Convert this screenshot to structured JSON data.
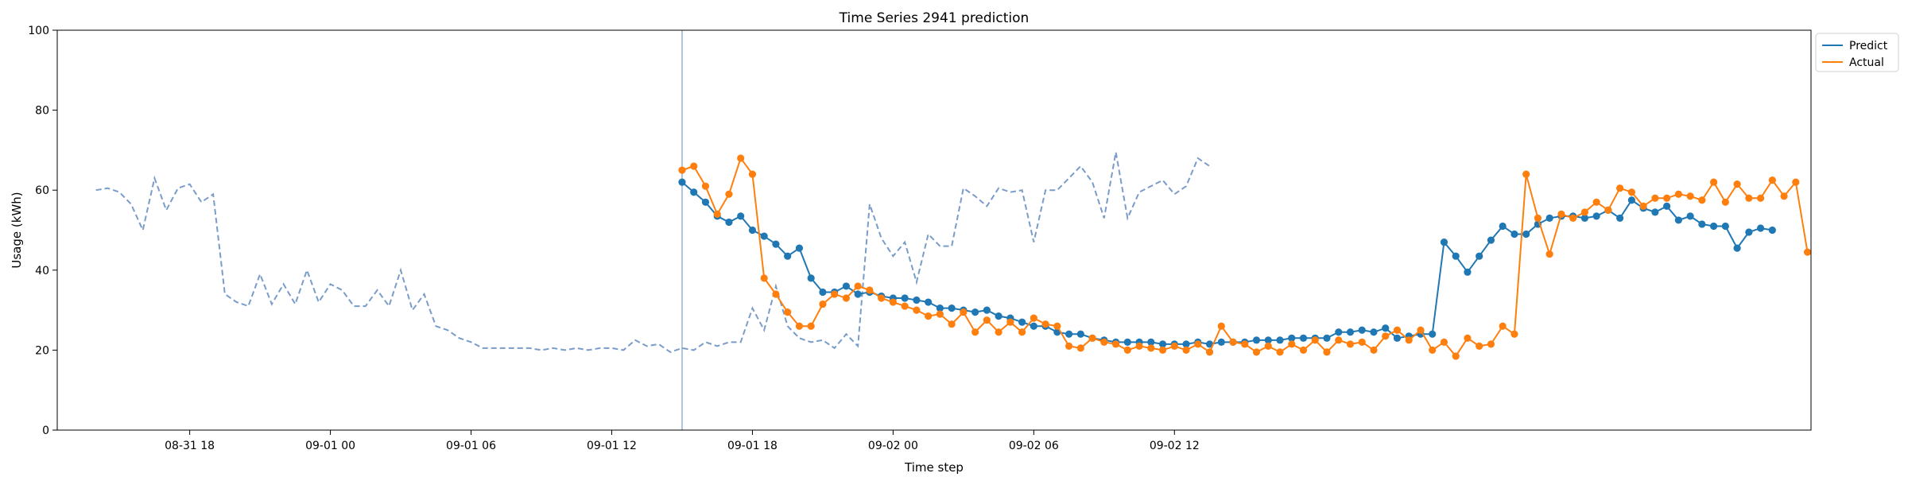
{
  "chart_data": {
    "type": "line",
    "title": "Time Series 2941 prediction",
    "xlabel": "Time step",
    "ylabel": "Usage (kWh)",
    "ylim": [
      0,
      100
    ],
    "yticks": [
      0,
      20,
      40,
      60,
      80,
      100
    ],
    "x_start": "2024-08-31T14:00",
    "x_step_minutes": 30,
    "xticks": [
      {
        "label": "08-31 18",
        "index": 8
      },
      {
        "label": "09-01 00",
        "index": 20
      },
      {
        "label": "09-01 06",
        "index": 32
      },
      {
        "label": "09-01 12",
        "index": 44
      },
      {
        "label": "09-01 18",
        "index": 56
      },
      {
        "label": "09-02 00",
        "index": 68
      },
      {
        "label": "09-02 06",
        "index": 80
      },
      {
        "label": "09-02 12",
        "index": 92
      }
    ],
    "forecast_start_index": 50,
    "grid": false,
    "legend_position": "outside-top-right",
    "history": {
      "color": "#7a9cc8",
      "style": "dashed",
      "values": [
        60,
        60.5,
        59.5,
        56.5,
        50,
        63,
        55,
        60.5,
        61.5,
        57,
        59,
        34,
        32,
        31,
        39,
        31.5,
        36.5,
        31.5,
        40,
        32,
        36.5,
        35,
        31,
        31,
        35,
        31,
        40,
        30,
        34,
        26,
        25,
        23,
        22,
        20.5,
        20.5,
        20.5,
        20.5,
        20.5,
        20,
        20.5,
        20,
        20.5,
        20,
        20.5,
        20.5,
        20,
        22.5,
        21,
        21.5,
        19.5,
        20.5,
        20,
        22,
        21,
        22,
        22,
        30.5,
        25,
        36,
        26,
        23,
        22,
        22.5,
        20.5,
        24,
        21,
        56.5,
        48,
        43.5,
        47,
        37,
        49,
        46,
        46,
        60.5,
        58.5,
        56,
        60.5,
        59.5,
        60,
        47,
        60,
        60,
        63,
        66,
        62,
        53,
        69.5,
        53,
        59.5,
        61,
        62.5,
        59,
        61,
        68,
        66
      ]
    },
    "series": [
      {
        "name": "Predict",
        "color": "#1f77b4",
        "values": [
          62,
          59.5,
          57,
          53.5,
          52,
          53.5,
          50,
          48.5,
          46.5,
          43.5,
          45.5,
          38,
          34.5,
          34.5,
          36,
          34,
          34.5,
          33.5,
          33,
          33,
          32.5,
          32,
          30.5,
          30.5,
          30,
          29.5,
          30,
          28.5,
          28,
          27,
          26,
          26,
          24.5,
          24,
          24,
          23,
          22.5,
          22,
          22,
          22,
          22,
          21.5,
          21.5,
          21.5,
          22,
          21.5,
          22,
          22,
          22,
          22.5,
          22.5,
          22.5,
          23,
          23,
          23,
          23,
          24.5,
          24.5,
          25,
          24.5,
          25.5,
          23,
          23.5,
          24,
          24,
          47,
          43.5,
          39.5,
          43.5,
          47.5,
          51,
          49,
          49,
          51.5,
          53,
          53.5,
          53.5,
          53,
          53.5,
          55,
          53,
          57.5,
          55.5,
          54.5,
          56,
          52.5,
          53.5,
          51.5,
          51,
          51,
          45.5,
          49.5,
          50.5,
          50
        ]
      },
      {
        "name": "Actual",
        "color": "#ff7f0e",
        "values": [
          65,
          66,
          61,
          54,
          59,
          68,
          64,
          38,
          34,
          29.5,
          26,
          26,
          31.5,
          34,
          33,
          36,
          35,
          33,
          32,
          31,
          30,
          28.5,
          29,
          26.5,
          29.5,
          24.5,
          27.5,
          24.5,
          27,
          24.5,
          28,
          26.5,
          26,
          21,
          20.5,
          23,
          22,
          21.5,
          20,
          21,
          20.5,
          20,
          21,
          20,
          21.5,
          19.5,
          26,
          22,
          21.5,
          19.5,
          21,
          19.5,
          21.5,
          20,
          22.5,
          19.5,
          22.5,
          21.5,
          22,
          20,
          23.5,
          25,
          22.5,
          25,
          20,
          22,
          18.5,
          23,
          21,
          21.5,
          26,
          24,
          64,
          53,
          44,
          54,
          53,
          54.5,
          57,
          55,
          60.5,
          59.5,
          56,
          58,
          58,
          59,
          58.5,
          57.5,
          62,
          57,
          61.5,
          58,
          58,
          62.5,
          58.5,
          62,
          44.5
        ]
      }
    ]
  }
}
